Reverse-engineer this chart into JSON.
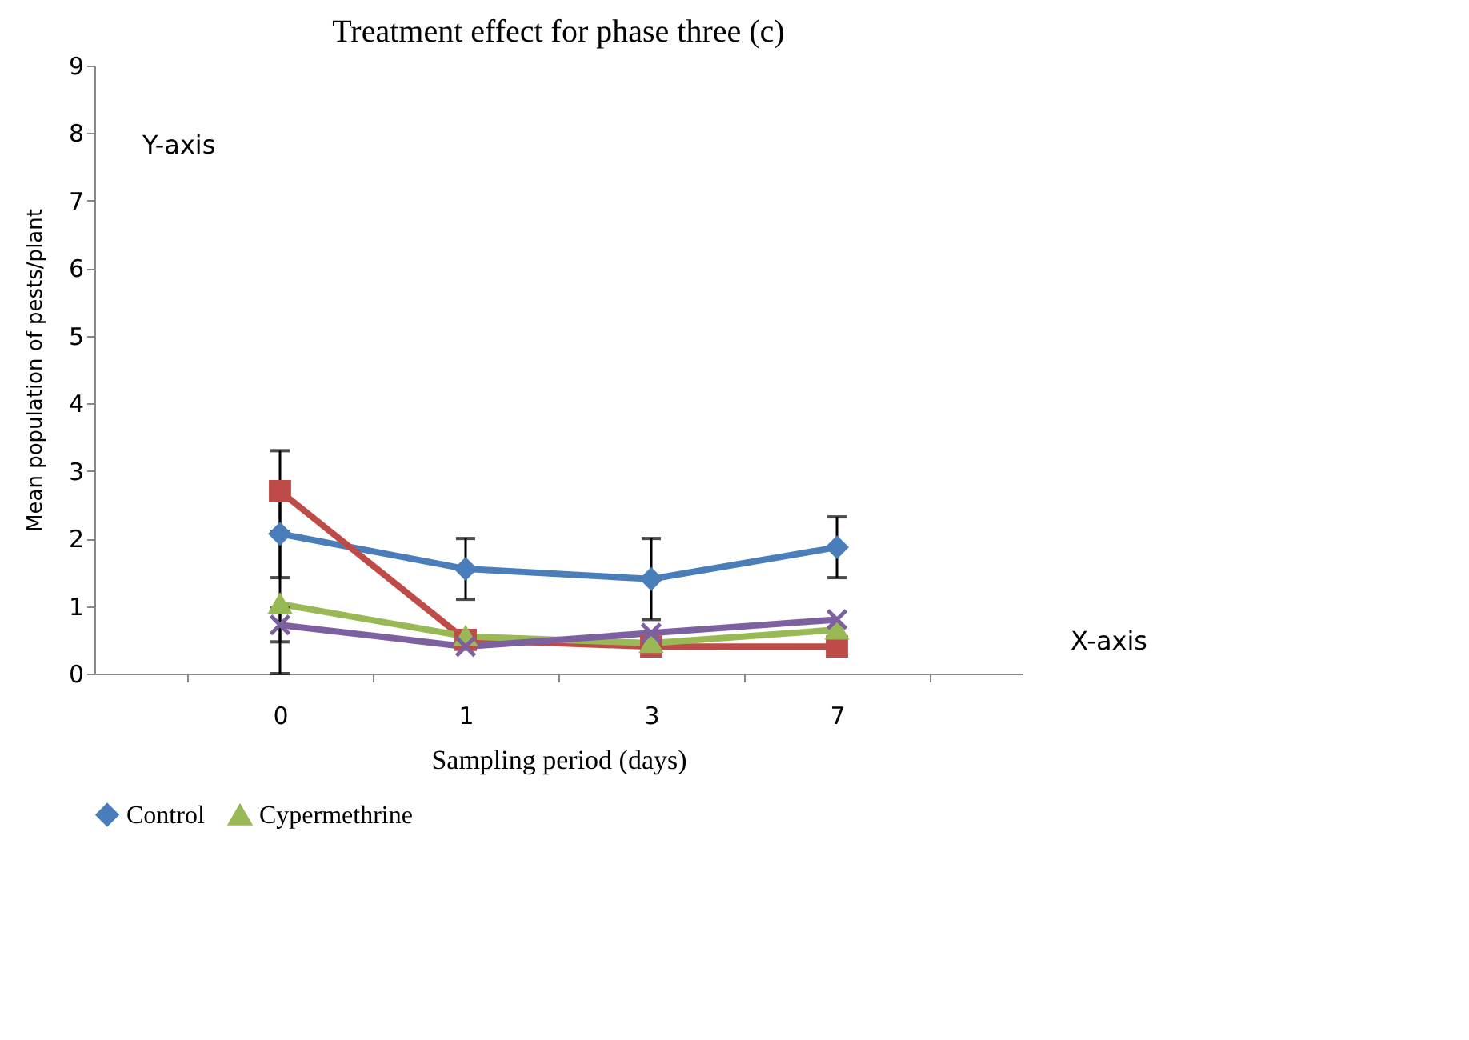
{
  "chart_data": {
    "type": "line",
    "title": "Treatment  effect for phase three (c)",
    "xlabel": "Sampling period (days)",
    "ylabel": "Mean population of pests/plant",
    "annotations": [
      "Y-axis",
      "X-axis"
    ],
    "categories": [
      "0",
      "1",
      "3",
      "7"
    ],
    "ylim": [
      0,
      9
    ],
    "yticks": [
      0,
      1,
      2,
      3,
      4,
      5,
      6,
      7,
      8,
      9
    ],
    "grid": false,
    "legend": "bottom",
    "series": [
      {
        "name": "Control",
        "color": "#4a7ebb",
        "marker": "diamond",
        "values": [
          2.07,
          1.55,
          1.4,
          1.87
        ],
        "errors": [
          0.65,
          0.45,
          0.6,
          0.45
        ]
      },
      {
        "color": "#be4b48",
        "marker": "square",
        "values": [
          2.7,
          0.5,
          0.4,
          0.4
        ],
        "errors": [
          0.6,
          null,
          null,
          null
        ]
      },
      {
        "name": "Cypermethrine",
        "color": "#98b954",
        "marker": "triangle",
        "values": [
          1.03,
          0.55,
          0.45,
          0.65
        ],
        "errors": [
          1.03,
          null,
          null,
          null
        ]
      },
      {
        "color": "#7d60a0",
        "marker": "cross",
        "values": [
          0.72,
          0.4,
          0.6,
          0.8
        ],
        "errors": [
          0.25,
          null,
          null,
          null
        ]
      }
    ]
  }
}
